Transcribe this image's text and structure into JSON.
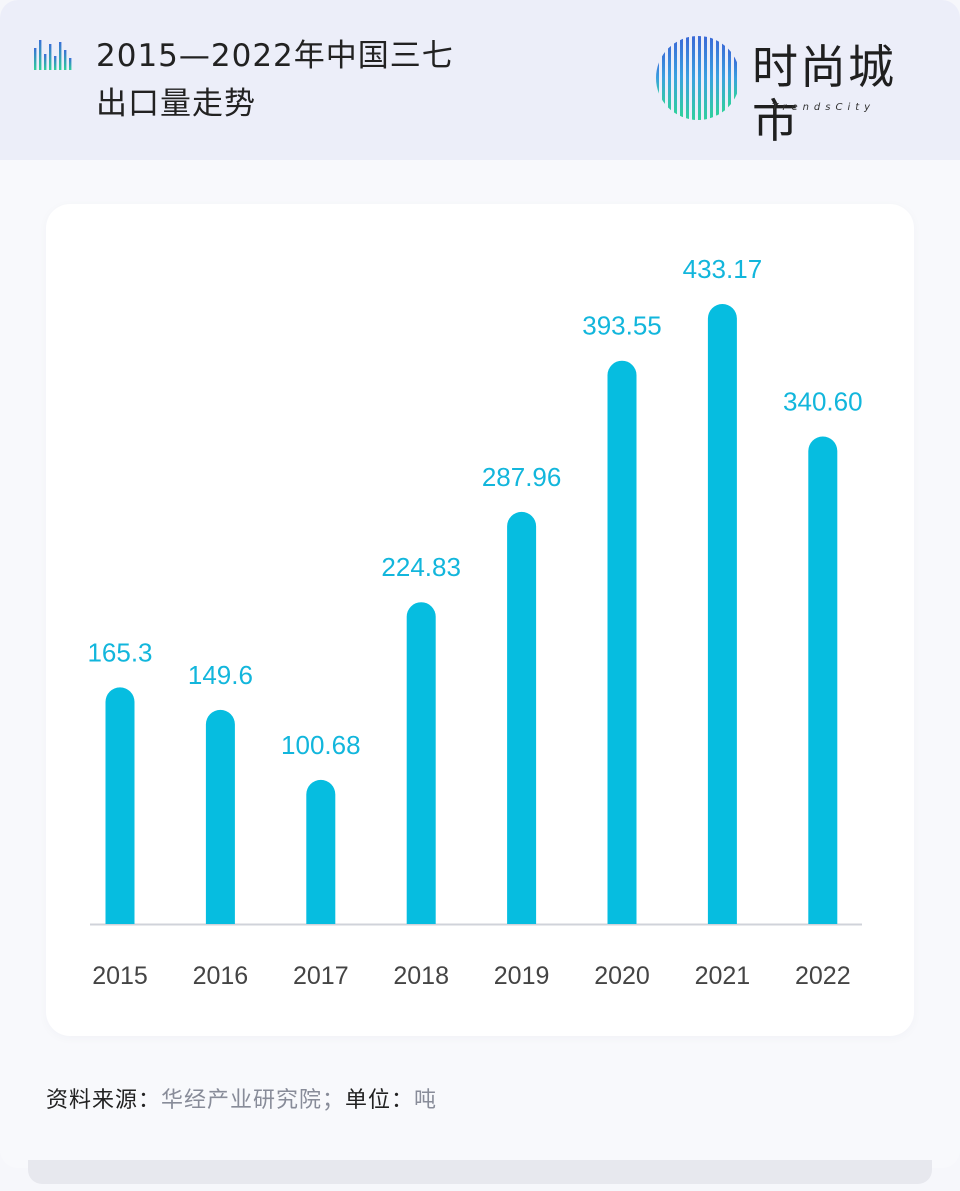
{
  "header": {
    "title_line1": "2015—2022年中国三七",
    "title_line2": "出口量走势",
    "icon": "bar-chart-icon"
  },
  "brand": {
    "name": "时尚城市",
    "subtitle": "TrendsCity",
    "logo": "trendscity-logo"
  },
  "footer": {
    "source_label": "资料来源：",
    "source_value": "华经产业研究院；",
    "unit_label": "单位：",
    "unit_value": "吨"
  },
  "colors": {
    "bar": "#06bde0",
    "label": "#12b6dc",
    "axis": "#d0d3da",
    "tick": "#444444"
  },
  "chart_data": {
    "type": "bar",
    "categories": [
      "2015",
      "2016",
      "2017",
      "2018",
      "2019",
      "2020",
      "2021",
      "2022"
    ],
    "values": [
      165.3,
      149.6,
      100.68,
      224.83,
      287.96,
      393.55,
      433.17,
      340.6
    ],
    "value_labels": [
      "165.3",
      "149.6",
      "100.68",
      "224.83",
      "287.96",
      "393.55",
      "433.17",
      "340.60"
    ],
    "title": "",
    "xlabel": "",
    "ylabel": "",
    "ylim": [
      0,
      433.17
    ],
    "grid": false,
    "legend": "none"
  }
}
